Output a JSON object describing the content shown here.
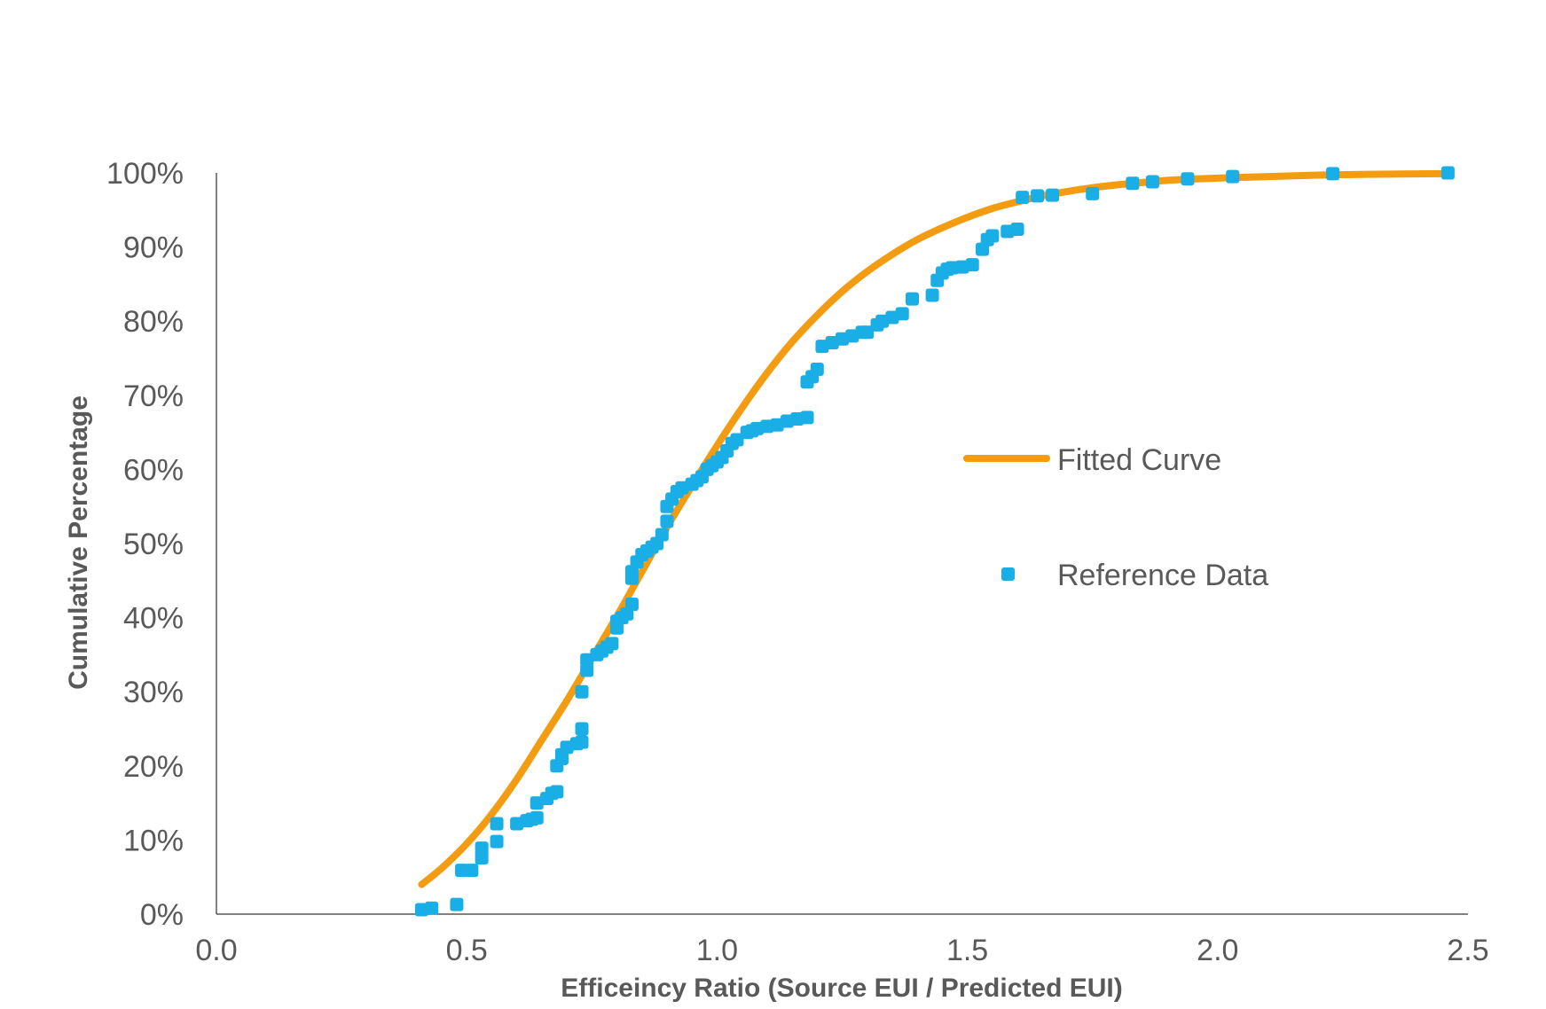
{
  "chart_data": {
    "type": "scatter",
    "title": "",
    "xlabel": "Efficeincy Ratio (Source EUI / Predicted EUI)",
    "ylabel": "Cumulative Percentage",
    "xlim": [
      0,
      2.5
    ],
    "ylim": [
      0,
      100
    ],
    "x_ticks": [
      "0.0",
      "0.5",
      "1.0",
      "1.5",
      "2.0",
      "2.5"
    ],
    "y_ticks": [
      "0%",
      "10%",
      "20%",
      "30%",
      "40%",
      "50%",
      "60%",
      "70%",
      "80%",
      "90%",
      "100%"
    ],
    "legend_position": "center-right",
    "series": [
      {
        "name": "Fitted Curve",
        "kind": "line",
        "color": "#F39C12",
        "x": [
          0.41,
          0.45,
          0.5,
          0.55,
          0.6,
          0.65,
          0.7,
          0.75,
          0.8,
          0.85,
          0.9,
          0.95,
          1.0,
          1.05,
          1.1,
          1.15,
          1.2,
          1.25,
          1.3,
          1.35,
          1.4,
          1.45,
          1.5,
          1.55,
          1.6,
          1.65,
          1.7,
          1.75,
          1.8,
          1.85,
          1.9,
          2.0,
          2.1,
          2.2,
          2.3,
          2.45
        ],
        "y": [
          4.0,
          6.2,
          9.5,
          13.5,
          18.2,
          23.5,
          28.8,
          34.5,
          40.2,
          46.2,
          52.2,
          57.8,
          63.2,
          68.3,
          73.0,
          77.2,
          80.8,
          84.0,
          86.7,
          89.0,
          91.0,
          92.6,
          94.0,
          95.2,
          96.1,
          96.9,
          97.5,
          98.0,
          98.4,
          98.7,
          99.0,
          99.3,
          99.5,
          99.7,
          99.8,
          99.9
        ]
      },
      {
        "name": "Reference Data",
        "kind": "scatter",
        "color": "#1AAEE6",
        "x": [
          0.41,
          0.43,
          0.48,
          0.49,
          0.51,
          0.53,
          0.53,
          0.56,
          0.56,
          0.6,
          0.62,
          0.63,
          0.64,
          0.64,
          0.66,
          0.67,
          0.68,
          0.68,
          0.69,
          0.69,
          0.7,
          0.72,
          0.73,
          0.73,
          0.73,
          0.74,
          0.74,
          0.76,
          0.77,
          0.78,
          0.79,
          0.8,
          0.8,
          0.81,
          0.82,
          0.83,
          0.83,
          0.83,
          0.84,
          0.85,
          0.86,
          0.87,
          0.88,
          0.89,
          0.9,
          0.9,
          0.91,
          0.92,
          0.93,
          0.95,
          0.96,
          0.97,
          0.98,
          0.99,
          1.0,
          1.01,
          1.02,
          1.03,
          1.04,
          1.06,
          1.07,
          1.08,
          1.1,
          1.12,
          1.14,
          1.16,
          1.18,
          1.18,
          1.19,
          1.2,
          1.21,
          1.23,
          1.25,
          1.27,
          1.29,
          1.3,
          1.32,
          1.33,
          1.35,
          1.37,
          1.39,
          1.43,
          1.44,
          1.45,
          1.46,
          1.47,
          1.49,
          1.51,
          1.53,
          1.54,
          1.55,
          1.58,
          1.6,
          1.61,
          1.64,
          1.67,
          1.75,
          1.83,
          1.87,
          1.94,
          2.03,
          2.23,
          2.46
        ],
        "y": [
          0.6,
          0.8,
          1.3,
          5.9,
          5.9,
          7.6,
          8.9,
          9.8,
          12.2,
          12.2,
          12.6,
          12.8,
          13.0,
          15.0,
          15.6,
          16.3,
          16.5,
          20.0,
          21.0,
          21.5,
          22.5,
          23.0,
          23.2,
          25.0,
          30.0,
          32.9,
          34.3,
          35.0,
          35.5,
          36.0,
          36.5,
          38.6,
          39.5,
          40.0,
          40.5,
          41.8,
          45.3,
          46.2,
          47.5,
          48.5,
          49.0,
          49.5,
          50.0,
          51.2,
          53.0,
          55.0,
          56.0,
          57.0,
          57.5,
          58.0,
          58.5,
          59.0,
          60.0,
          60.5,
          61.0,
          61.6,
          62.5,
          63.5,
          64.0,
          65.0,
          65.2,
          65.5,
          65.8,
          66.0,
          66.5,
          66.8,
          67.0,
          71.8,
          72.5,
          73.5,
          76.6,
          77.1,
          77.6,
          78.0,
          78.5,
          78.5,
          79.5,
          80.0,
          80.5,
          81.0,
          83.0,
          83.5,
          85.5,
          86.5,
          87.0,
          87.2,
          87.3,
          87.6,
          89.7,
          91.0,
          91.5,
          92.1,
          92.4,
          96.7,
          96.9,
          97.0,
          97.2,
          98.6,
          98.8,
          99.2,
          99.5,
          99.9,
          100.0
        ]
      }
    ]
  }
}
